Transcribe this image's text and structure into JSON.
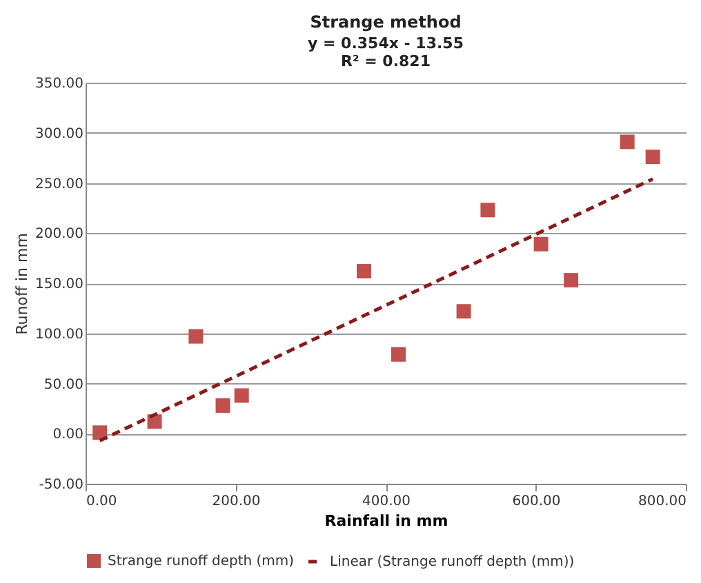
{
  "chart_data": {
    "type": "scatter",
    "title": "Strange method",
    "subtitle": "y = 0.354x - 13.55\nR² = 0.821",
    "xlabel": "Rainfall in mm",
    "ylabel": "Runoff in mm",
    "series": [
      {
        "name": "Strange runoff depth (mm)",
        "color": "#c0504d",
        "marker": "square",
        "x": [
          19,
          92,
          147,
          183,
          208,
          371,
          417,
          504,
          536,
          607,
          647,
          722,
          756
        ],
        "values": [
          1,
          12,
          97,
          28,
          38,
          162,
          79,
          122,
          223,
          189,
          153,
          291,
          276
        ]
      },
      {
        "name": "Linear (Strange runoff depth (mm))",
        "type": "line",
        "color": "#8b1a1a",
        "line_style": "dashed",
        "x": [
          19,
          756
        ],
        "values": [
          -7,
          254
        ]
      }
    ],
    "xlim": [
      0,
      800
    ],
    "xticks": [
      {
        "value": 0,
        "label": "0.00"
      },
      {
        "value": 200,
        "label": "200.00"
      },
      {
        "value": 400,
        "label": "400.00"
      },
      {
        "value": 600,
        "label": "600.00"
      },
      {
        "value": 800,
        "label": "800.00"
      }
    ],
    "ylim": [
      -50,
      350
    ],
    "yticks": [
      {
        "value": -50,
        "label": "-50.00"
      },
      {
        "value": 0,
        "label": "0.00"
      },
      {
        "value": 50,
        "label": "50.00"
      },
      {
        "value": 100,
        "label": "100.00"
      },
      {
        "value": 150,
        "label": "150.00"
      },
      {
        "value": 200,
        "label": "200.00"
      },
      {
        "value": 250,
        "label": "250.00"
      },
      {
        "value": 300,
        "label": "300.00"
      },
      {
        "value": 350,
        "label": "350.00"
      }
    ],
    "grid": "y",
    "legend": "bottom"
  }
}
